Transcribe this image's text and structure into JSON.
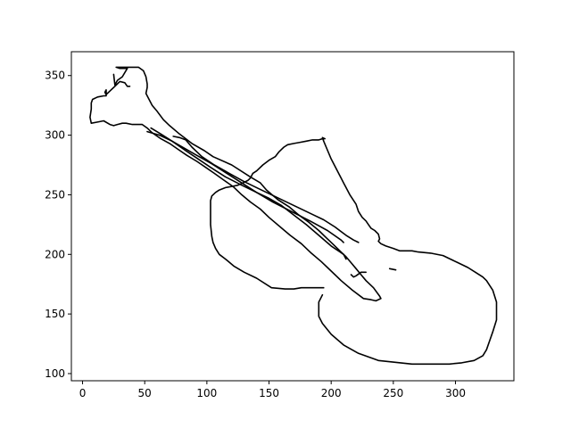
{
  "chart_data": {
    "type": "line",
    "title": "",
    "xlabel": "",
    "ylabel": "",
    "xlim": [
      -9,
      347
    ],
    "ylim": [
      94,
      370
    ],
    "grid": false,
    "legend": "none",
    "line_color": "#000000",
    "x_ticks": [
      0,
      50,
      100,
      150,
      200,
      250,
      300
    ],
    "y_ticks": [
      100,
      150,
      200,
      250,
      300,
      350
    ],
    "series": [
      {
        "x": [
          193,
          190,
          190,
          193,
          200,
          210,
          222,
          238,
          265,
          280,
          295,
          305,
          315,
          322,
          325,
          330,
          333,
          333,
          330,
          325,
          322,
          316,
          310,
          302,
          296,
          290,
          280,
          270,
          265,
          260,
          255,
          250,
          244,
          240,
          238,
          239,
          238,
          235,
          232,
          230,
          228,
          225,
          222,
          220,
          215,
          210,
          205,
          200,
          196,
          194,
          193,
          195,
          193,
          193,
          190,
          187,
          185,
          180,
          175,
          170,
          165,
          162,
          160,
          158,
          155,
          150,
          145,
          140,
          137,
          135,
          134,
          133,
          131,
          129,
          125,
          120,
          115,
          110,
          107,
          104,
          103,
          103,
          103,
          104,
          105,
          107,
          110,
          115,
          122,
          130,
          140,
          152,
          163,
          170,
          176,
          194
        ],
        "y": [
          166,
          160,
          148,
          142,
          133,
          124,
          117,
          111,
          108,
          108,
          108,
          109,
          111,
          115,
          120,
          135,
          145,
          160,
          170,
          178,
          181,
          185,
          189,
          193,
          196,
          199,
          201,
          202,
          203,
          203,
          203,
          205,
          207,
          209,
          211,
          213,
          217,
          220,
          222,
          225,
          228,
          231,
          236,
          242,
          250,
          260,
          270,
          280,
          290,
          295,
          298,
          297,
          297,
          297,
          296,
          296,
          296,
          295,
          294,
          293,
          292,
          290,
          288,
          286,
          282,
          279,
          275,
          270,
          268,
          264,
          263,
          262,
          261,
          260,
          258,
          257,
          256,
          254,
          252,
          249,
          245,
          240,
          225,
          215,
          210,
          205,
          200,
          196,
          190,
          185,
          180,
          172,
          171,
          171,
          172,
          172
        ]
      },
      {
        "x": [
          25,
          26,
          28,
          32,
          36,
          30,
          27,
          30,
          35,
          40,
          45,
          49,
          51,
          52,
          52,
          51,
          52,
          56,
          60,
          65,
          70,
          78,
          88,
          98,
          105,
          120,
          135,
          143,
          148,
          157,
          166,
          174,
          182,
          190,
          196,
          202,
          207,
          212,
          216,
          220,
          224,
          228,
          234,
          239,
          240,
          236,
          232,
          226,
          217,
          208,
          200,
          192,
          184,
          176,
          167,
          159,
          150,
          143,
          135,
          128,
          121,
          114,
          106,
          99,
          92,
          84,
          77,
          70,
          63,
          56,
          52,
          48,
          45,
          40,
          35,
          32,
          28,
          25,
          22,
          17,
          12,
          7,
          6,
          7,
          7,
          8,
          12,
          17,
          19,
          19,
          18,
          19,
          22,
          27,
          30,
          34,
          36,
          38
        ],
        "y": [
          351,
          342,
          346,
          349,
          356,
          356,
          357,
          357,
          357,
          357,
          357,
          354,
          349,
          343,
          340,
          335,
          333,
          325,
          320,
          313,
          308,
          301,
          293,
          287,
          282,
          275,
          265,
          260,
          254,
          246,
          240,
          233,
          227,
          220,
          214,
          208,
          203,
          198,
          193,
          188,
          183,
          178,
          172,
          165,
          163,
          161,
          162,
          163,
          170,
          178,
          186,
          194,
          201,
          209,
          216,
          223,
          231,
          238,
          244,
          250,
          257,
          262,
          268,
          273,
          278,
          283,
          288,
          293,
          297,
          302,
          306,
          309,
          309,
          309,
          310,
          310,
          309,
          308,
          309,
          312,
          311,
          310,
          315,
          322,
          327,
          330,
          332,
          333,
          333,
          338,
          336,
          334,
          337,
          342,
          345,
          344,
          341,
          341
        ]
      },
      {
        "x": [
          52,
          62,
          72,
          82,
          92,
          104,
          116,
          128,
          140,
          153,
          168,
          183,
          197,
          208,
          210
        ],
        "y": [
          303,
          300,
          295,
          289,
          283,
          276,
          268,
          260,
          252,
          244,
          236,
          228,
          220,
          212,
          210
        ]
      },
      {
        "x": [
          55,
          63,
          72,
          83,
          93,
          103,
          115,
          128,
          140,
          150,
          160,
          170,
          180,
          190,
          200,
          210,
          212
        ],
        "y": [
          306,
          301,
          295,
          287,
          280,
          273,
          265,
          258,
          252,
          247,
          241,
          233,
          225,
          216,
          207,
          200,
          196
        ]
      },
      {
        "x": [
          73,
          78,
          83,
          88,
          96,
          106,
          118,
          130,
          142,
          154,
          166,
          178,
          186,
          194,
          203,
          212,
          218,
          222
        ],
        "y": [
          299,
          298,
          296,
          290,
          282,
          275,
          268,
          261,
          255,
          249,
          243,
          237,
          233,
          229,
          223,
          216,
          212,
          210
        ]
      },
      {
        "x": [
          216,
          218,
          220,
          224,
          228
        ],
        "y": [
          183,
          181,
          182,
          185,
          185
        ]
      },
      {
        "x": [
          247,
          252
        ],
        "y": [
          188,
          187
        ]
      }
    ]
  }
}
